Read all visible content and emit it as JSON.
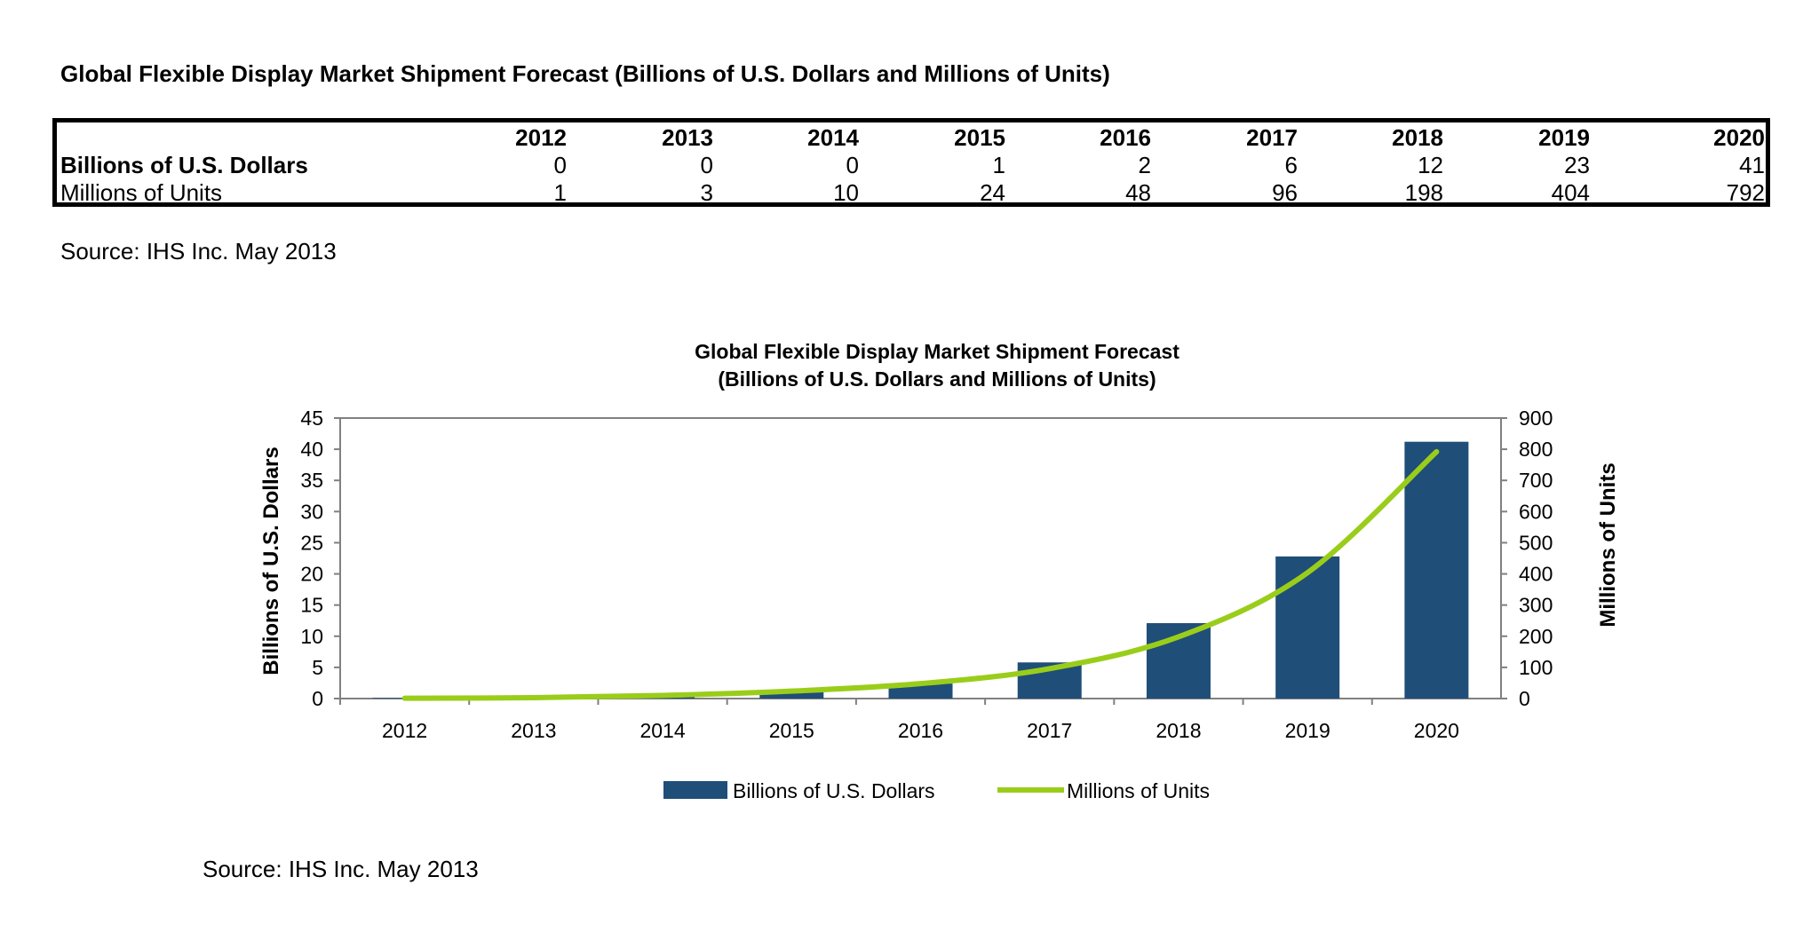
{
  "page_title": "Global Flexible Display Market Shipment Forecast (Billions of U.S. Dollars and Millions of Units)",
  "table": {
    "years": [
      "2012",
      "2013",
      "2014",
      "2015",
      "2016",
      "2017",
      "2018",
      "2019",
      "2020"
    ],
    "rows": [
      {
        "label": "Billions of U.S. Dollars",
        "values": [
          "0",
          "0",
          "0",
          "1",
          "2",
          "6",
          "12",
          "23",
          "41"
        ]
      },
      {
        "label": "Millions of Units",
        "values": [
          "1",
          "3",
          "10",
          "24",
          "48",
          "96",
          "198",
          "404",
          "792"
        ]
      }
    ]
  },
  "source_top": "Source: IHS Inc. May 2013",
  "source_bottom": "Source: IHS Inc. May 2013",
  "chart_data": {
    "type": "bar",
    "title_line1": "Global Flexible Display Market Shipment Forecast",
    "title_line2": "(Billions of U.S. Dollars and Millions of Units)",
    "categories": [
      "2012",
      "2013",
      "2014",
      "2015",
      "2016",
      "2017",
      "2018",
      "2019",
      "2020"
    ],
    "series": [
      {
        "name": "Billions of U.S. Dollars",
        "type": "bar",
        "axis": "left",
        "color": "#1f4e79",
        "values": [
          0.1,
          0.2,
          0.5,
          1.2,
          2.4,
          5.8,
          12.1,
          22.8,
          41.2
        ]
      },
      {
        "name": "Millions of Units",
        "type": "line",
        "axis": "right",
        "color": "#9acd1a",
        "values": [
          1,
          3,
          10,
          24,
          48,
          96,
          198,
          404,
          792
        ]
      }
    ],
    "ylabel": "Billions of U.S. Dollars",
    "ylabel_right": "Millions of Units",
    "ylim": [
      0,
      45
    ],
    "yticks": [
      "0",
      "5",
      "10",
      "15",
      "20",
      "25",
      "30",
      "35",
      "40",
      "45"
    ],
    "ylim_right": [
      0,
      900
    ],
    "yticks_right": [
      "0",
      "100",
      "200",
      "300",
      "400",
      "500",
      "600",
      "700",
      "800",
      "900"
    ],
    "legend_position": "bottom",
    "grid": false
  }
}
